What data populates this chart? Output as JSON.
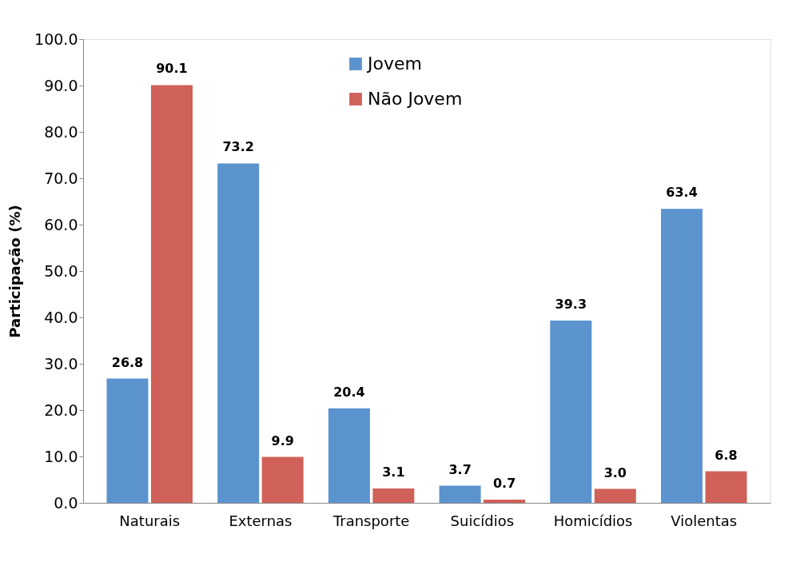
{
  "chart_data": {
    "type": "bar",
    "ylabel": "Participação (%)",
    "categories": [
      "Naturais",
      "Externas",
      "Transporte",
      "Suicídios",
      "Homicídios",
      "Violentas"
    ],
    "series": [
      {
        "name": "Jovem",
        "color": "#5b93cf",
        "values": [
          26.8,
          73.2,
          20.4,
          3.7,
          39.3,
          63.4
        ],
        "value_labels": [
          "26.8",
          "73.2",
          "20.4",
          "3.7",
          "39.3",
          "63.4"
        ]
      },
      {
        "name": "Não Jovem",
        "color": "#cf6159",
        "values": [
          90.1,
          9.9,
          3.1,
          0.7,
          3.0,
          6.8
        ],
        "value_labels": [
          "90.1",
          "9.9",
          "3.1",
          "0.7",
          "3.0",
          "6.8"
        ]
      }
    ],
    "ylim": [
      0,
      100
    ],
    "yticks": [
      {
        "value": 0,
        "label": "0.0"
      },
      {
        "value": 10,
        "label": "10.0"
      },
      {
        "value": 20,
        "label": "20.0"
      },
      {
        "value": 30,
        "label": "30.0"
      },
      {
        "value": 40,
        "label": "40.0"
      },
      {
        "value": 50,
        "label": "50.0"
      },
      {
        "value": 60,
        "label": "60.0"
      },
      {
        "value": 70,
        "label": "70.0"
      },
      {
        "value": 80,
        "label": "80.0"
      },
      {
        "value": 90,
        "label": "90.0"
      },
      {
        "value": 100,
        "label": "100.0"
      }
    ],
    "grid": false,
    "legend": "top"
  }
}
